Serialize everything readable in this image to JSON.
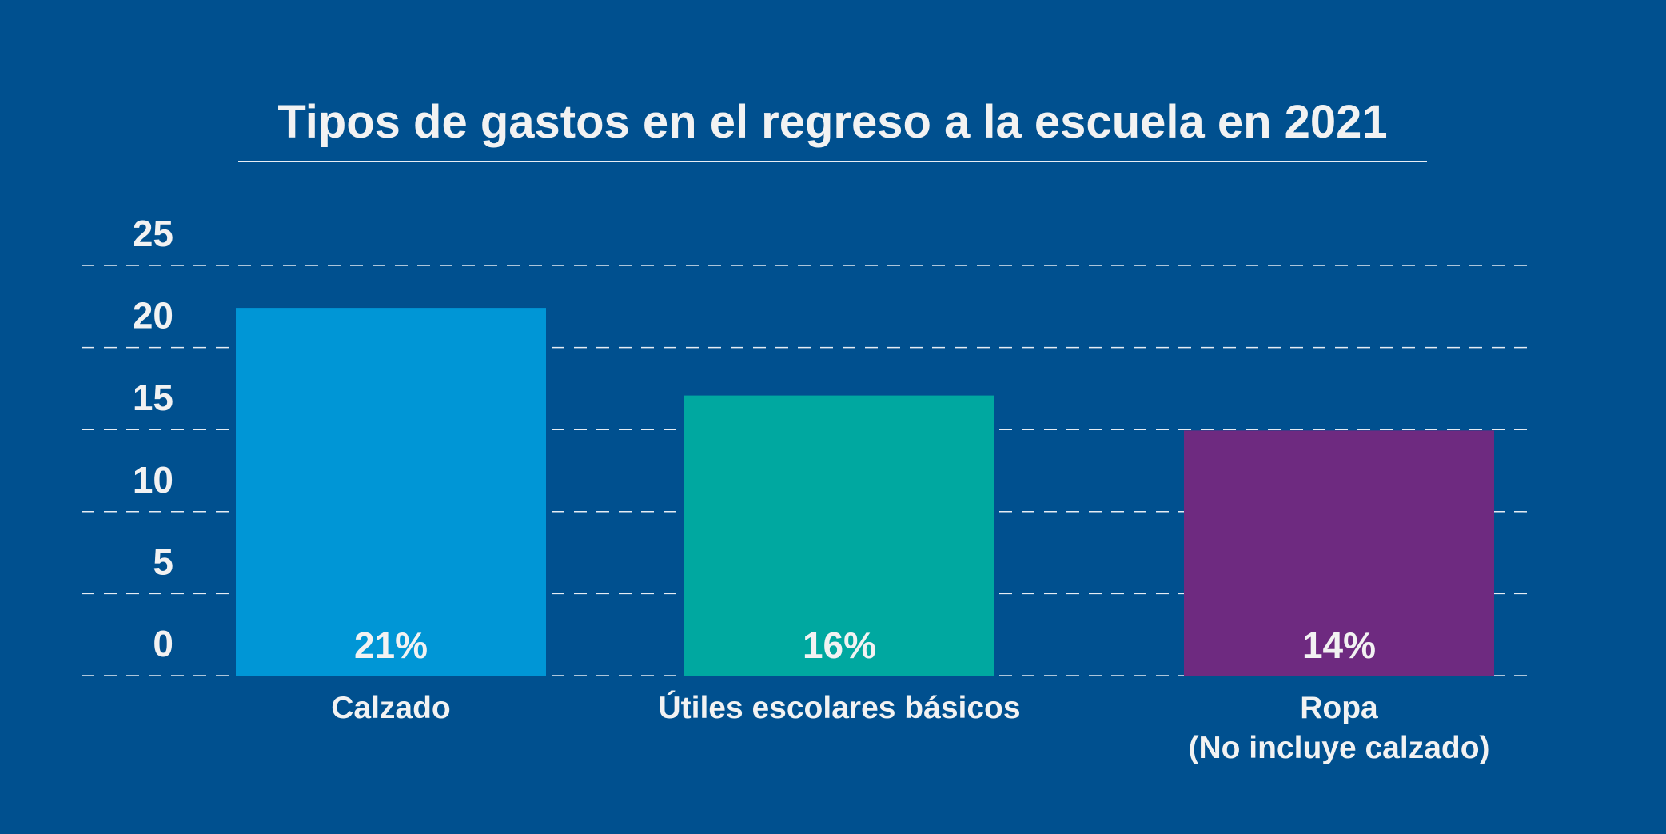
{
  "chart_data": {
    "type": "bar",
    "title": "Tipos de gastos en el regreso a la escuela en 2021",
    "xlabel": "",
    "ylabel": "",
    "ylim": [
      0,
      25
    ],
    "yticks": [
      "0",
      "5",
      "10",
      "15",
      "20",
      "25"
    ],
    "grid": true,
    "categories": [
      [
        "Calzado"
      ],
      [
        "Útiles escolares básicos"
      ],
      [
        "Ropa",
        "(No incluye calzado)"
      ]
    ],
    "values": [
      21,
      16,
      14
    ],
    "value_labels": [
      "21%",
      "16%",
      "14%"
    ],
    "colors": [
      "#0096d6",
      "#00a8a0",
      "#6e2a80"
    ],
    "background": "#00508f"
  }
}
